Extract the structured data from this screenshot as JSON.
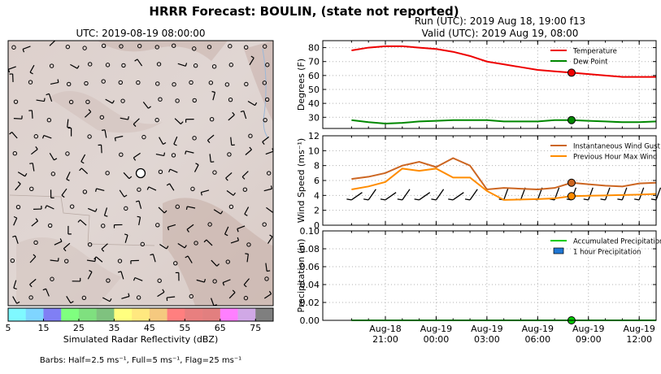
{
  "title": "HRRR Forecast: BOULIN, (state not reported)",
  "map": {
    "title": "UTC: 2019-08-19 08:00:00",
    "colorbar": {
      "label": "Simulated Radar Reflectivity (dBZ)",
      "ticks": [
        "5",
        "15",
        "25",
        "35",
        "45",
        "55",
        "65",
        "75"
      ],
      "colors": [
        "#7ff9ff",
        "#7fd5ff",
        "#807ff4",
        "#7fff7f",
        "#7fe07f",
        "#7fc27f",
        "#ffff7f",
        "#ffe87f",
        "#f5c97f",
        "#ff7f7f",
        "#e87f7f",
        "#e27f7f",
        "#ff7fff",
        "#d0a8e6",
        "#7f7f7f"
      ]
    },
    "barbs_caption": "Barbs: Half=2.5 ms⁻¹, Full=5 ms⁻¹, Flag=25 ms⁻¹"
  },
  "run_title": "Run (UTC): 2019 Aug 18, 19:00 f13",
  "valid_title": "Valid (UTC): 2019 Aug 19, 08:00",
  "chart_data": [
    {
      "type": "line",
      "ylabel": "Degrees (F)",
      "ylim": [
        22,
        85
      ],
      "yticks": [
        "30",
        "40",
        "50",
        "60",
        "70",
        "80"
      ],
      "grid": true,
      "legend": "top-right",
      "hours": [
        19,
        20,
        21,
        22,
        23,
        24,
        25,
        26,
        27,
        28,
        29,
        30,
        31,
        32,
        33,
        34,
        35,
        36,
        37
      ],
      "series": [
        {
          "name": "Temperature",
          "color": "#ee0000",
          "values": [
            78,
            80,
            81,
            81,
            80,
            79,
            77,
            74,
            70,
            68,
            66,
            64,
            63,
            62,
            61,
            60,
            59,
            59,
            59
          ]
        },
        {
          "name": "Dew Point",
          "color": "#008800",
          "values": [
            28,
            26.5,
            25.5,
            26,
            27,
            27.5,
            28,
            28,
            28,
            27,
            27,
            27,
            28,
            28,
            27.5,
            27,
            26.5,
            26.5,
            27
          ]
        }
      ],
      "marker_hour": 32,
      "marker_values": [
        62,
        28
      ]
    },
    {
      "type": "line",
      "ylabel": "Wind Speed (ms⁻¹)",
      "ylim": [
        0,
        12
      ],
      "yticks": [
        "0",
        "2",
        "4",
        "6",
        "8",
        "10",
        "12"
      ],
      "grid": true,
      "legend": "top-right",
      "hours": [
        19,
        20,
        21,
        22,
        23,
        24,
        25,
        26,
        27,
        28,
        29,
        30,
        31,
        32,
        33,
        34,
        35,
        36,
        37
      ],
      "series": [
        {
          "name": "Instantaneous Wind Gust",
          "color": "#cc6622",
          "values": [
            6.2,
            6.5,
            7,
            8,
            8.5,
            7.8,
            9,
            8,
            4.8,
            5,
            4.9,
            4.8,
            5,
            5.7,
            5.5,
            5.3,
            5.2,
            5.6,
            5.7
          ]
        },
        {
          "name": "Previous Hour Max Wind",
          "color": "#ff8c00",
          "values": [
            4.8,
            5.2,
            5.8,
            7.6,
            7.3,
            7.6,
            6.4,
            6.4,
            4.6,
            3.4,
            3.45,
            3.5,
            3.6,
            3.9,
            3.95,
            4,
            4.05,
            4.1,
            4.2
          ]
        }
      ],
      "marker_hour": 32,
      "marker_values": [
        5.7,
        3.9
      ]
    },
    {
      "type": "bar",
      "ylabel": "Precipitation (in)",
      "ylim": [
        0,
        0.1
      ],
      "yticks": [
        "0.00",
        "0.02",
        "0.04",
        "0.06",
        "0.08",
        "0.10"
      ],
      "grid": true,
      "legend": "top-right",
      "hours": [
        19,
        20,
        21,
        22,
        23,
        24,
        25,
        26,
        27,
        28,
        29,
        30,
        31,
        32,
        33,
        34,
        35,
        36,
        37
      ],
      "series": [
        {
          "name": "Accumulated Precipitation",
          "color": "#00cc00",
          "values": [
            0,
            0,
            0,
            0,
            0,
            0,
            0,
            0,
            0,
            0,
            0,
            0,
            0,
            0,
            0,
            0,
            0,
            0,
            0
          ]
        },
        {
          "name": "1 hour Precipitation",
          "color": "#1f77d4",
          "values": [
            0,
            0,
            0,
            0,
            0,
            0,
            0,
            0,
            0,
            0,
            0,
            0,
            0,
            0,
            0,
            0,
            0,
            0,
            0
          ]
        }
      ],
      "marker_hour": 32,
      "marker_values": [
        0
      ]
    }
  ],
  "x_ticks": [
    {
      "hour": 21,
      "line1": "Aug-18",
      "line2": "21:00"
    },
    {
      "hour": 24,
      "line1": "Aug-19",
      "line2": "00:00"
    },
    {
      "hour": 27,
      "line1": "Aug-19",
      "line2": "03:00"
    },
    {
      "hour": 30,
      "line1": "Aug-19",
      "line2": "06:00"
    },
    {
      "hour": 33,
      "line1": "Aug-19",
      "line2": "09:00"
    },
    {
      "hour": 36,
      "line1": "Aug-19",
      "line2": "12:00"
    }
  ],
  "x_minor_hours": [
    19,
    20,
    21,
    22,
    23,
    24,
    25,
    26,
    27,
    28,
    29,
    30,
    31,
    32,
    33,
    34,
    35,
    36,
    37
  ],
  "x_range": [
    17.3,
    37.0
  ]
}
